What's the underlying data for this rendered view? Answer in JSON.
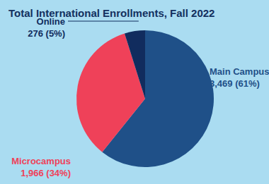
{
  "chart_data": {
    "type": "pie",
    "title": "Total International Enrollments, Fall 2022",
    "categories": [
      "Main Campus",
      "Microcampus",
      "Online"
    ],
    "values": [
      3469,
      1966,
      276
    ],
    "value_labels": [
      "3,469 (61%)",
      "1,966 (34%)",
      "276 (5%)"
    ],
    "colors": [
      "#1f5088",
      "#ef4159",
      "#112c5e"
    ],
    "data_labels": true
  }
}
